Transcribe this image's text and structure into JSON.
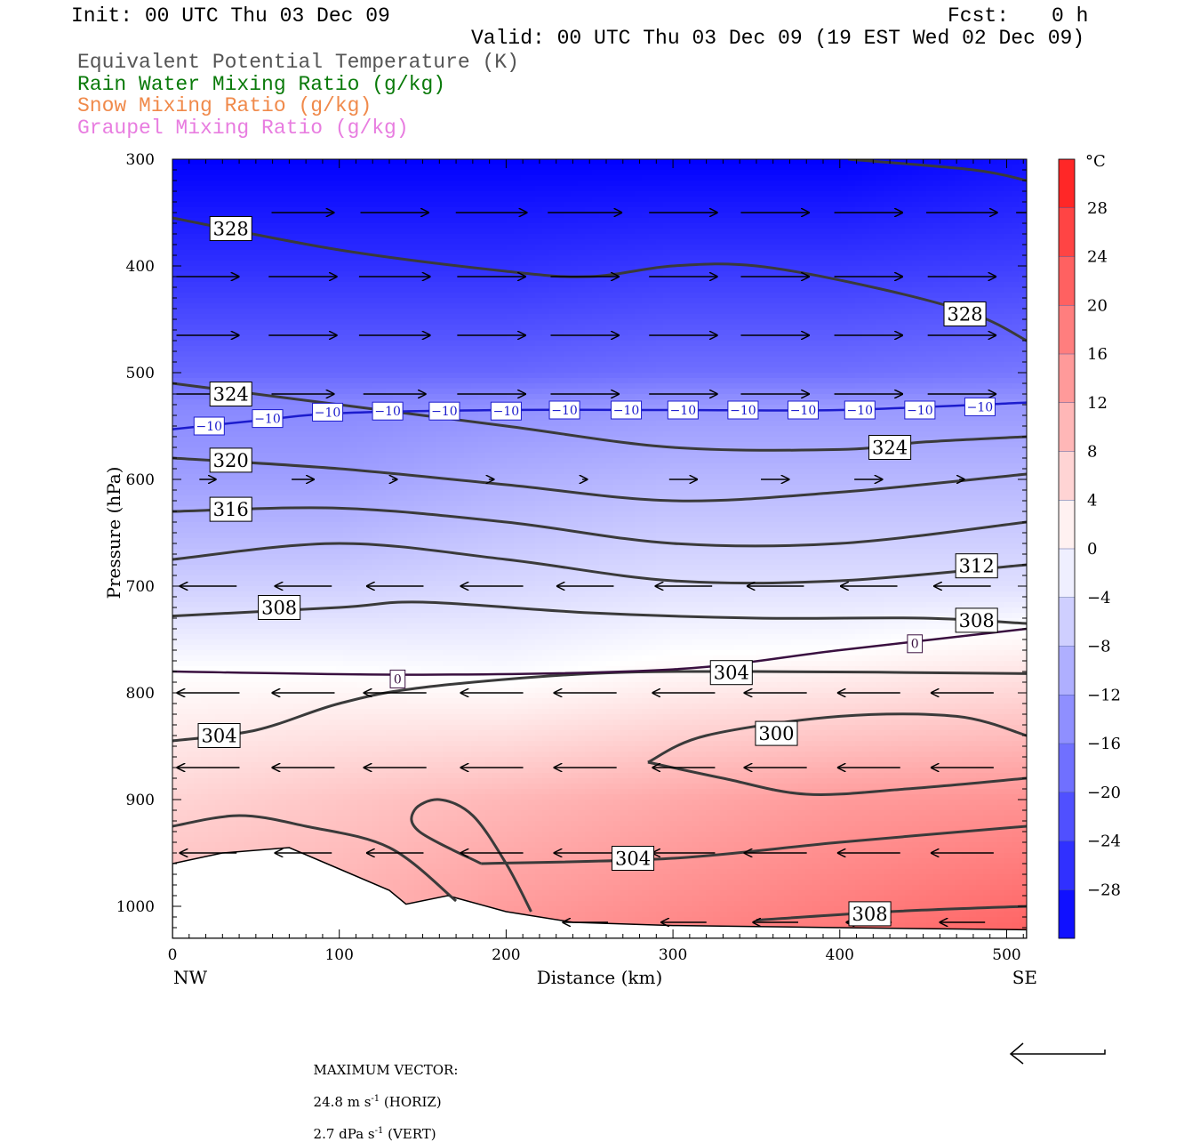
{
  "header": {
    "init": "Init: 00 UTC Thu 03 Dec 09",
    "fcst_label": "Fcst:",
    "fcst_value": "0 h",
    "valid": "Valid: 00 UTC Thu 03 Dec 09 (19 EST Wed 02 Dec 09)"
  },
  "fields": [
    {
      "label": "Equivalent Potential Temperature (K)",
      "color": "#555555"
    },
    {
      "label": "Rain Water Mixing Ratio (g/kg)",
      "color": "#0a7a0a"
    },
    {
      "label": "Snow Mixing Ratio (g/kg)",
      "color": "#f08a4b"
    },
    {
      "label": "Graupel Mixing Ratio (g/kg)",
      "color": "#e87de0"
    }
  ],
  "chart_data": {
    "type": "cross-section",
    "xlabel": "Distance (km)",
    "ylabel": "Pressure (hPa)",
    "x_ticks": [
      "0",
      "100",
      "200",
      "300",
      "400",
      "500"
    ],
    "y_ticks": [
      "300",
      "400",
      "500",
      "600",
      "700",
      "800",
      "900",
      "1000"
    ],
    "xlim": [
      0,
      512
    ],
    "ylim": [
      300,
      1030
    ],
    "x_end_labels": {
      "left": "NW",
      "right": "SE"
    },
    "colorbar": {
      "unit": "°C",
      "ticks": [
        "28",
        "24",
        "20",
        "16",
        "12",
        "8",
        "4",
        "0",
        "−4",
        "−8",
        "−12",
        "−16",
        "−20",
        "−24",
        "−28"
      ],
      "range": [
        -32,
        32
      ],
      "step": 4
    },
    "temperature_field": [
      {
        "x": 0,
        "levels": [
          [
            300,
            -32
          ],
          [
            400,
            -26
          ],
          [
            500,
            -19
          ],
          [
            530,
            -15
          ],
          [
            600,
            -12
          ],
          [
            700,
            -6
          ],
          [
            780,
            0
          ],
          [
            900,
            6
          ],
          [
            960,
            8
          ]
        ]
      },
      {
        "x": 100,
        "levels": [
          [
            300,
            -32
          ],
          [
            400,
            -26
          ],
          [
            500,
            -19
          ],
          [
            530,
            -15
          ],
          [
            600,
            -12
          ],
          [
            700,
            -6
          ],
          [
            780,
            0
          ],
          [
            900,
            8
          ],
          [
            980,
            10
          ]
        ]
      },
      {
        "x": 200,
        "levels": [
          [
            300,
            -32
          ],
          [
            400,
            -26
          ],
          [
            500,
            -19
          ],
          [
            530,
            -14
          ],
          [
            600,
            -10
          ],
          [
            700,
            -5
          ],
          [
            790,
            0
          ],
          [
            900,
            10
          ],
          [
            1010,
            14
          ]
        ]
      },
      {
        "x": 300,
        "levels": [
          [
            300,
            -32
          ],
          [
            400,
            -25
          ],
          [
            500,
            -18
          ],
          [
            530,
            -13
          ],
          [
            600,
            -9
          ],
          [
            700,
            -4
          ],
          [
            780,
            1
          ],
          [
            900,
            12
          ],
          [
            1030,
            17
          ]
        ]
      },
      {
        "x": 400,
        "levels": [
          [
            300,
            -32
          ],
          [
            400,
            -25
          ],
          [
            500,
            -18
          ],
          [
            530,
            -13
          ],
          [
            600,
            -9
          ],
          [
            700,
            -4
          ],
          [
            760,
            0
          ],
          [
            900,
            14
          ],
          [
            1030,
            19
          ]
        ]
      },
      {
        "x": 512,
        "levels": [
          [
            300,
            -30
          ],
          [
            400,
            -24
          ],
          [
            500,
            -17
          ],
          [
            530,
            -13
          ],
          [
            600,
            -9
          ],
          [
            700,
            -4
          ],
          [
            740,
            0
          ],
          [
            900,
            15
          ],
          [
            1030,
            22
          ]
        ]
      }
    ],
    "theta_e_contours": [
      {
        "label": "328",
        "points": [
          [
            0,
            355
          ],
          [
            100,
            385
          ],
          [
            200,
            405
          ],
          [
            250,
            410
          ],
          [
            300,
            400
          ],
          [
            350,
            400
          ],
          [
            420,
            420
          ],
          [
            480,
            445
          ],
          [
            512,
            470
          ]
        ],
        "label_at": [
          [
            35,
            365
          ],
          [
            475,
            445
          ]
        ]
      },
      {
        "label": "328",
        "points": [
          [
            405,
            300
          ],
          [
            480,
            310
          ],
          [
            512,
            320
          ]
        ]
      },
      {
        "label": "324",
        "points": [
          [
            0,
            510
          ],
          [
            100,
            530
          ],
          [
            200,
            550
          ],
          [
            300,
            570
          ],
          [
            400,
            572
          ],
          [
            450,
            565
          ],
          [
            512,
            560
          ]
        ],
        "label_at": [
          [
            35,
            520
          ],
          [
            430,
            570
          ]
        ]
      },
      {
        "label": "320",
        "points": [
          [
            0,
            580
          ],
          [
            100,
            590
          ],
          [
            200,
            605
          ],
          [
            300,
            620
          ],
          [
            400,
            612
          ],
          [
            512,
            595
          ]
        ],
        "label_at": [
          [
            35,
            582
          ]
        ]
      },
      {
        "label": "316",
        "points": [
          [
            0,
            630
          ],
          [
            100,
            627
          ],
          [
            200,
            640
          ],
          [
            300,
            660
          ],
          [
            400,
            660
          ],
          [
            512,
            640
          ]
        ],
        "label_at": [
          [
            35,
            628
          ]
        ]
      },
      {
        "label": "312",
        "points": [
          [
            0,
            675
          ],
          [
            100,
            660
          ],
          [
            200,
            675
          ],
          [
            300,
            695
          ],
          [
            400,
            695
          ],
          [
            512,
            680
          ]
        ],
        "label_at": [
          [
            482,
            681
          ]
        ]
      },
      {
        "label": "308",
        "points": [
          [
            0,
            728
          ],
          [
            100,
            720
          ],
          [
            150,
            715
          ],
          [
            250,
            725
          ],
          [
            350,
            730
          ],
          [
            450,
            730
          ],
          [
            512,
            735
          ]
        ],
        "label_at": [
          [
            64,
            720
          ],
          [
            482,
            732
          ]
        ]
      },
      {
        "label": "304",
        "points": [
          [
            0,
            845
          ],
          [
            50,
            835
          ],
          [
            100,
            810
          ],
          [
            150,
            795
          ],
          [
            250,
            782
          ],
          [
            350,
            780
          ],
          [
            512,
            782
          ]
        ],
        "label_at": [
          [
            28,
            840
          ],
          [
            335,
            781
          ]
        ]
      },
      {
        "label": "300",
        "points": [
          [
            285,
            865
          ],
          [
            320,
            840
          ],
          [
            400,
            822
          ],
          [
            470,
            822
          ],
          [
            512,
            840
          ]
        ],
        "label_at": [
          [
            362,
            838
          ]
        ]
      },
      {
        "label": "300",
        "points": [
          [
            285,
            865
          ],
          [
            330,
            880
          ],
          [
            380,
            895
          ],
          [
            440,
            890
          ],
          [
            512,
            880
          ]
        ]
      },
      {
        "label": "304",
        "points": [
          [
            0,
            925
          ],
          [
            40,
            915
          ],
          [
            80,
            925
          ],
          [
            130,
            945
          ],
          [
            170,
            995
          ]
        ]
      },
      {
        "label": "304",
        "points": [
          [
            215,
            1005
          ],
          [
            200,
            960
          ],
          [
            180,
            915
          ],
          [
            160,
            900
          ],
          [
            145,
            910
          ],
          [
            148,
            930
          ],
          [
            185,
            960
          ]
        ]
      },
      {
        "label": "304",
        "points": [
          [
            185,
            960
          ],
          [
            300,
            955
          ],
          [
            400,
            940
          ],
          [
            512,
            925
          ]
        ],
        "label_at": [
          [
            276,
            955
          ]
        ]
      },
      {
        "label": "308",
        "points": [
          [
            350,
            1013
          ],
          [
            430,
            1005
          ],
          [
            512,
            1000
          ]
        ],
        "label_at": [
          [
            418,
            1007
          ]
        ]
      }
    ],
    "isotherms": [
      {
        "label": "−10",
        "points": [
          [
            0,
            553
          ],
          [
            50,
            545
          ],
          [
            100,
            538
          ],
          [
            200,
            535
          ],
          [
            300,
            535
          ],
          [
            400,
            535
          ],
          [
            512,
            528
          ]
        ],
        "color": "#1c1ccd",
        "label_at": [
          [
            22,
            550
          ],
          [
            57,
            543
          ],
          [
            93,
            537
          ],
          [
            129,
            536
          ],
          [
            163,
            536
          ],
          [
            200,
            536
          ],
          [
            235,
            535
          ],
          [
            272,
            535
          ],
          [
            306,
            535
          ],
          [
            342,
            535
          ],
          [
            378,
            535
          ],
          [
            412,
            535
          ],
          [
            448,
            535
          ],
          [
            484,
            532
          ]
        ]
      },
      {
        "label": "0",
        "points": [
          [
            0,
            780
          ],
          [
            150,
            783
          ],
          [
            300,
            778
          ],
          [
            400,
            760
          ],
          [
            512,
            740
          ]
        ],
        "color": "#3a1040",
        "label_at": [
          [
            135,
            787
          ],
          [
            445,
            754
          ]
        ]
      }
    ],
    "wind_vectors": [
      {
        "p": 350,
        "x": [
          57,
          112,
          170,
          226,
          285,
          340,
          396,
          452,
          505
        ],
        "u": [
          22,
          24,
          25,
          26,
          24,
          24,
          24,
          25,
          24
        ]
      },
      {
        "p": 410,
        "x": [
          0,
          57,
          112,
          170,
          226,
          285,
          340,
          396,
          452
        ],
        "u": [
          22,
          24,
          25,
          24,
          24,
          24,
          24,
          24,
          24
        ]
      },
      {
        "p": 465,
        "x": [
          0,
          57,
          112,
          170,
          226,
          285,
          340,
          396,
          452
        ],
        "u": [
          22,
          24,
          25,
          24,
          24,
          24,
          24,
          24,
          24
        ]
      },
      {
        "p": 520,
        "x": [
          0,
          57,
          112,
          170,
          226,
          285,
          340,
          396,
          452
        ],
        "u": [
          22,
          22,
          22,
          24,
          24,
          24,
          24,
          24,
          24
        ]
      },
      {
        "p": 600,
        "x": [
          0,
          57,
          112,
          170,
          226,
          285,
          340,
          396,
          452
        ],
        "u": [
          6,
          8,
          2,
          2,
          2,
          10,
          10,
          10,
          2
        ]
      },
      {
        "p": 700,
        "x": [
          0,
          57,
          112,
          170,
          226,
          285,
          340,
          396,
          452
        ],
        "u": [
          -20,
          -20,
          -20,
          -22,
          -20,
          -20,
          -20,
          -20,
          -20
        ]
      },
      {
        "p": 800,
        "x": [
          0,
          57,
          112,
          170,
          226,
          285,
          340,
          396,
          452
        ],
        "u": [
          -22,
          -22,
          -22,
          -22,
          -22,
          -22,
          -22,
          -22,
          -22
        ]
      },
      {
        "p": 870,
        "x": [
          0,
          57,
          112,
          170,
          226,
          285,
          340,
          396,
          452
        ],
        "u": [
          -22,
          -22,
          -22,
          -22,
          -22,
          -22,
          -22,
          -22,
          -22
        ]
      },
      {
        "p": 950,
        "x": [
          0,
          57,
          112,
          170,
          226,
          285,
          340,
          396,
          452
        ],
        "u": [
          -20,
          -20,
          -20,
          -22,
          -22,
          -22,
          -22,
          -22,
          -22
        ]
      },
      {
        "p": 1015,
        "x": [
          226,
          285,
          340,
          396,
          452
        ],
        "u": [
          -16,
          -16,
          -16,
          -16,
          -16
        ]
      }
    ],
    "terrain": [
      [
        0,
        960
      ],
      [
        30,
        950
      ],
      [
        70,
        945
      ],
      [
        100,
        965
      ],
      [
        130,
        985
      ],
      [
        140,
        998
      ],
      [
        165,
        990
      ],
      [
        200,
        1005
      ],
      [
        240,
        1015
      ],
      [
        300,
        1018
      ],
      [
        400,
        1020
      ],
      [
        512,
        1022
      ]
    ]
  },
  "footer": {
    "max_vector_label": "MAXIMUM VECTOR:",
    "horiz_value": "24.8 m s",
    "horiz_sup": "-1",
    "horiz_unit": " (HORIZ)",
    "vert_value": "2.7 dPa s",
    "vert_sup": "-1",
    "vert_unit": " (VERT)"
  }
}
